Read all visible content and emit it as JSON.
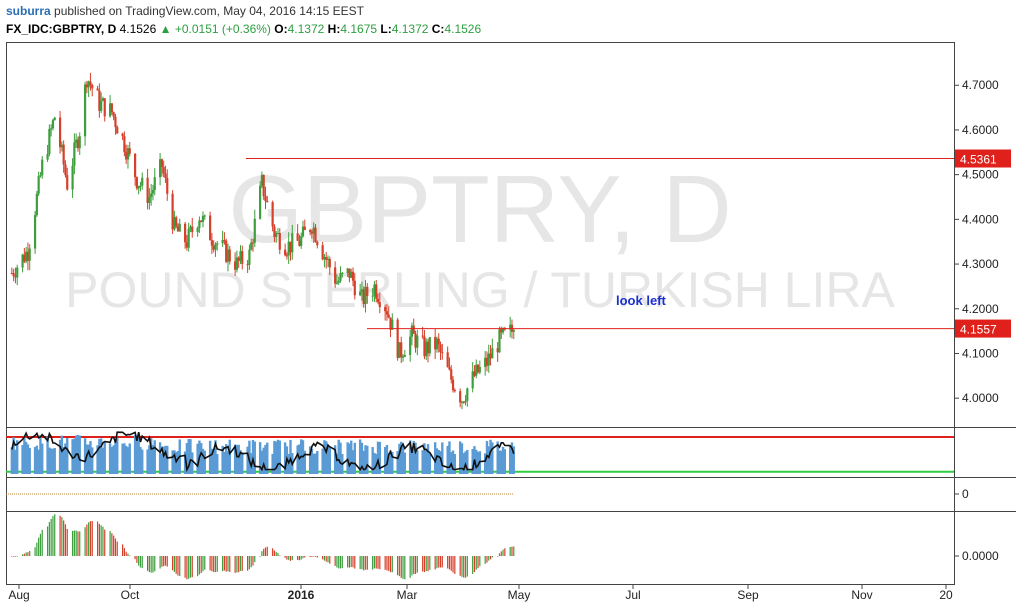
{
  "header": {
    "publisher": "suburra",
    "published_text": "published on TradingView.com, May 04, 2016 14:15 EEST",
    "symbol": "FX_IDC:GBPTRY, D",
    "last": "4.1526",
    "change_arrow": "▲",
    "change": "+0.0151 (+0.36%)",
    "o_label": "O:",
    "o": "4.1372",
    "h_label": "H:",
    "h": "4.1675",
    "l_label": "L:",
    "l": "4.1372",
    "c_label": "C:",
    "c": "4.1526"
  },
  "watermark": {
    "symbol": "GBPTRY, D",
    "name": "POUND STERLING / TURKISH LIRA"
  },
  "annotation": "look left",
  "colors": {
    "up": "#3c9e3c",
    "down": "#d6402b",
    "level_line": "#e0201b",
    "volume": "#5b9bd5",
    "oscillator": "#111111",
    "upper_band": "#e0201b",
    "lower_band": "#2ecc40",
    "dotted": "#c08a3a",
    "watermark": "#e6e6e6",
    "annotation": "#1a2fd0"
  },
  "chart_data": {
    "type": "candlestick",
    "title": "FX_IDC:GBPTRY, D",
    "x_ticks": [
      "Aug",
      "Oct",
      "2016",
      "Mar",
      "May",
      "Jul",
      "Sep",
      "Nov",
      "20"
    ],
    "y_ticks": [
      "4.7000",
      "4.6000",
      "4.5000",
      "4.4000",
      "4.3000",
      "4.2000",
      "4.1000",
      "4.0000"
    ],
    "ylim": [
      3.94,
      4.79
    ],
    "price_levels": [
      {
        "label": "4.5361",
        "value": 4.5361
      },
      {
        "label": "4.1557",
        "value": 4.1557
      }
    ],
    "close_path": {
      "dates": [
        "2015-07-28",
        "2015-08-06",
        "2015-08-14",
        "2015-08-21",
        "2015-08-28",
        "2015-09-04",
        "2015-09-08",
        "2015-09-15",
        "2015-09-22",
        "2015-09-29",
        "2015-10-06",
        "2015-10-13",
        "2015-10-20",
        "2015-10-27",
        "2015-11-03",
        "2015-11-10",
        "2015-11-17",
        "2015-11-24",
        "2015-12-01",
        "2015-12-08",
        "2015-12-15",
        "2015-12-22",
        "2015-12-29",
        "2016-01-05",
        "2016-01-12",
        "2016-01-19",
        "2016-01-26",
        "2016-02-02",
        "2016-02-09",
        "2016-02-16",
        "2016-02-23",
        "2016-03-01",
        "2016-03-08",
        "2016-03-15",
        "2016-03-22",
        "2016-03-29",
        "2016-04-05",
        "2016-04-12",
        "2016-04-19",
        "2016-04-26",
        "2016-05-04"
      ],
      "closes": [
        4.28,
        4.33,
        4.52,
        4.63,
        4.48,
        4.6,
        4.72,
        4.66,
        4.64,
        4.57,
        4.49,
        4.45,
        4.52,
        4.38,
        4.35,
        4.41,
        4.36,
        4.33,
        4.3,
        4.32,
        4.48,
        4.37,
        4.34,
        4.35,
        4.39,
        4.32,
        4.26,
        4.28,
        4.22,
        4.25,
        4.2,
        4.1,
        4.14,
        4.11,
        4.12,
        4.05,
        4.0,
        4.05,
        4.08,
        4.13,
        4.1526
      ]
    },
    "indicator_upper_band": 0.84,
    "indicator_lower_band": 0.05,
    "oscillator_zero_tick": "0",
    "macd_tick": "0.0000"
  }
}
